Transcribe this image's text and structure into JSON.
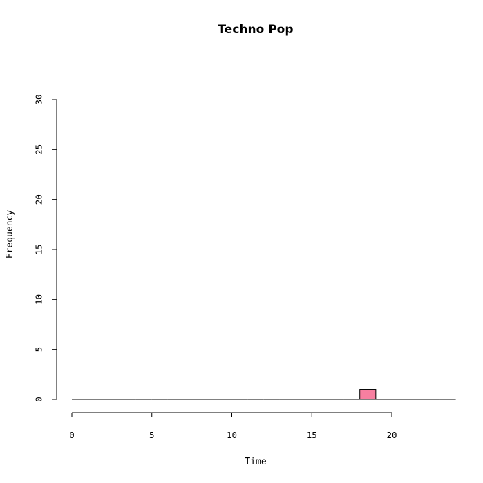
{
  "chart_data": {
    "type": "bar",
    "title": "Techno Pop",
    "xlabel": "Time",
    "ylabel": "Frequency",
    "xlim": [
      0,
      24
    ],
    "ylim": [
      0,
      30
    ],
    "x_ticks": [
      0,
      5,
      10,
      15,
      20
    ],
    "y_ticks": [
      0,
      5,
      10,
      15,
      20,
      25,
      30
    ],
    "bin_width": 1,
    "bins": [
      {
        "start": 0,
        "end": 1,
        "count": 0
      },
      {
        "start": 1,
        "end": 2,
        "count": 0
      },
      {
        "start": 2,
        "end": 3,
        "count": 0
      },
      {
        "start": 3,
        "end": 4,
        "count": 0
      },
      {
        "start": 4,
        "end": 5,
        "count": 0
      },
      {
        "start": 5,
        "end": 6,
        "count": 0
      },
      {
        "start": 6,
        "end": 7,
        "count": 0
      },
      {
        "start": 7,
        "end": 8,
        "count": 0
      },
      {
        "start": 8,
        "end": 9,
        "count": 0
      },
      {
        "start": 9,
        "end": 10,
        "count": 0
      },
      {
        "start": 10,
        "end": 11,
        "count": 0
      },
      {
        "start": 11,
        "end": 12,
        "count": 0
      },
      {
        "start": 12,
        "end": 13,
        "count": 0
      },
      {
        "start": 13,
        "end": 14,
        "count": 0
      },
      {
        "start": 14,
        "end": 15,
        "count": 0
      },
      {
        "start": 15,
        "end": 16,
        "count": 0
      },
      {
        "start": 16,
        "end": 17,
        "count": 0
      },
      {
        "start": 17,
        "end": 18,
        "count": 0
      },
      {
        "start": 18,
        "end": 19,
        "count": 1
      },
      {
        "start": 19,
        "end": 20,
        "count": 0
      },
      {
        "start": 20,
        "end": 21,
        "count": 0
      },
      {
        "start": 21,
        "end": 22,
        "count": 0
      },
      {
        "start": 22,
        "end": 23,
        "count": 0
      },
      {
        "start": 23,
        "end": 24,
        "count": 0
      }
    ],
    "bar_color": "#f77fa0",
    "grid": false,
    "legend": "none"
  }
}
